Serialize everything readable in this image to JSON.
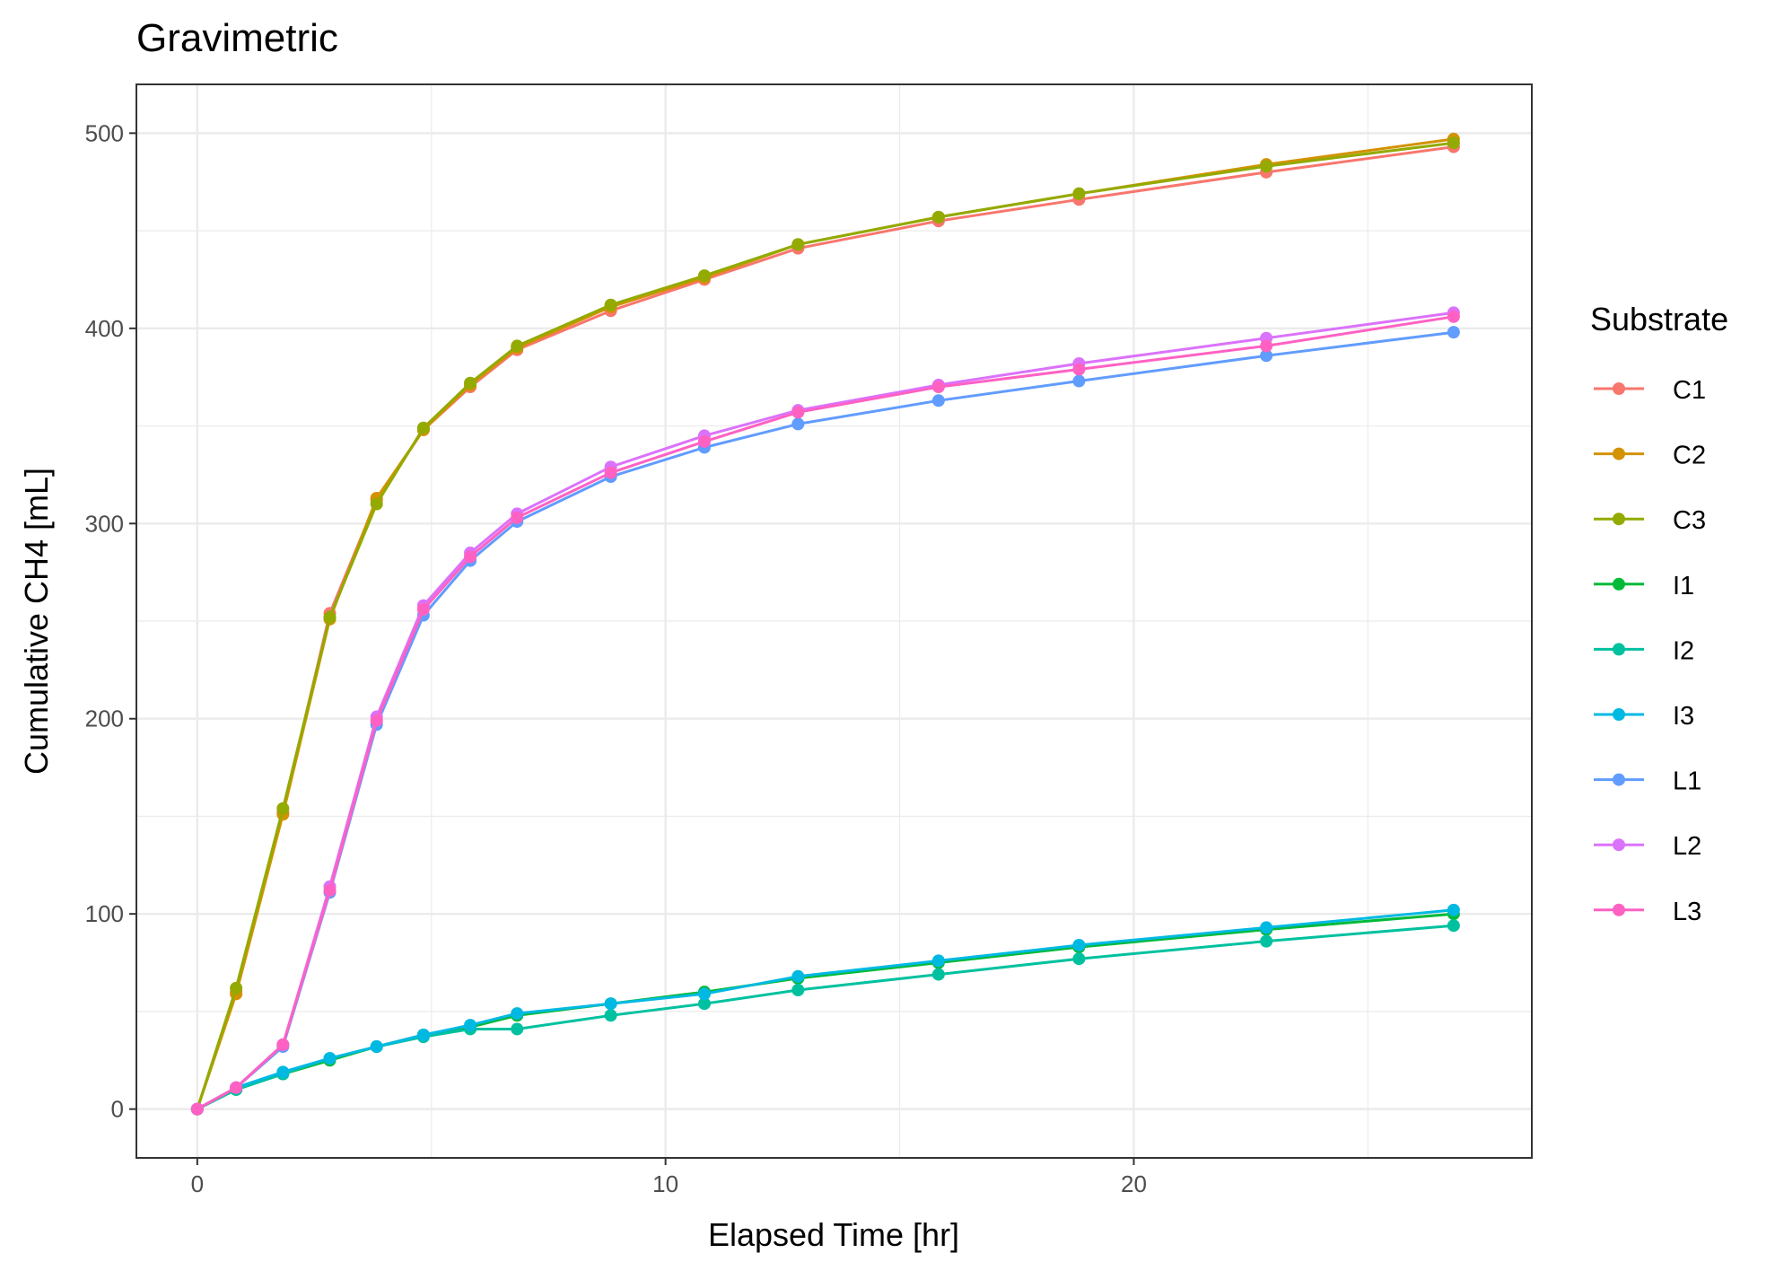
{
  "chart_data": {
    "type": "line",
    "title": "Gravimetric",
    "xlabel": "Elapsed Time [hr]",
    "ylabel": "Cumulative CH4 [mL]",
    "xlim": [
      -1.3,
      28.5
    ],
    "ylim": [
      -25,
      525
    ],
    "xticks": [
      0,
      10,
      20
    ],
    "xminor": [
      5,
      15,
      25
    ],
    "yticks": [
      0,
      100,
      200,
      300,
      400,
      500
    ],
    "yminor": [
      50,
      150,
      250,
      350,
      450
    ],
    "grid": true,
    "legend_title": "Substrate",
    "legend_position": "right",
    "x": [
      0,
      0.83,
      1.83,
      2.83,
      3.83,
      4.83,
      5.83,
      6.83,
      8.83,
      10.83,
      12.83,
      15.83,
      18.83,
      22.83,
      26.83
    ],
    "series": [
      {
        "name": "C1",
        "color": "#F8766D",
        "values": [
          0,
          60,
          152,
          254,
          312,
          348,
          370,
          389,
          409,
          425,
          441,
          455,
          466,
          480,
          493
        ]
      },
      {
        "name": "C2",
        "color": "#D39200",
        "values": [
          0,
          59,
          151,
          251,
          313,
          348,
          371,
          390,
          411,
          426,
          443,
          457,
          469,
          484,
          497
        ]
      },
      {
        "name": "C3",
        "color": "#93AA00",
        "values": [
          0,
          62,
          154,
          252,
          310,
          349,
          372,
          391,
          412,
          427,
          443,
          457,
          469,
          483,
          495
        ]
      },
      {
        "name": "I1",
        "color": "#00BA38",
        "values": [
          0,
          10,
          18,
          25,
          32,
          38,
          42,
          48,
          54,
          60,
          67,
          75,
          83,
          92,
          100
        ]
      },
      {
        "name": "I2",
        "color": "#00C19F",
        "values": [
          0,
          10,
          18,
          26,
          32,
          37,
          41,
          41,
          48,
          54,
          61,
          69,
          77,
          86,
          94
        ]
      },
      {
        "name": "I3",
        "color": "#00B9E3",
        "values": [
          0,
          11,
          19,
          26,
          32,
          38,
          43,
          49,
          54,
          59,
          68,
          76,
          84,
          93,
          102
        ]
      },
      {
        "name": "L1",
        "color": "#619CFF",
        "values": [
          0,
          11,
          32,
          111,
          197,
          253,
          281,
          301,
          324,
          339,
          351,
          363,
          373,
          386,
          398
        ]
      },
      {
        "name": "L2",
        "color": "#DB72FB",
        "values": [
          0,
          11,
          33,
          114,
          201,
          258,
          285,
          305,
          329,
          345,
          358,
          371,
          382,
          395,
          408
        ]
      },
      {
        "name": "L3",
        "color": "#FF61C3",
        "values": [
          0,
          11,
          33,
          112,
          199,
          256,
          283,
          303,
          326,
          342,
          357,
          370,
          379,
          391,
          406
        ]
      }
    ]
  }
}
